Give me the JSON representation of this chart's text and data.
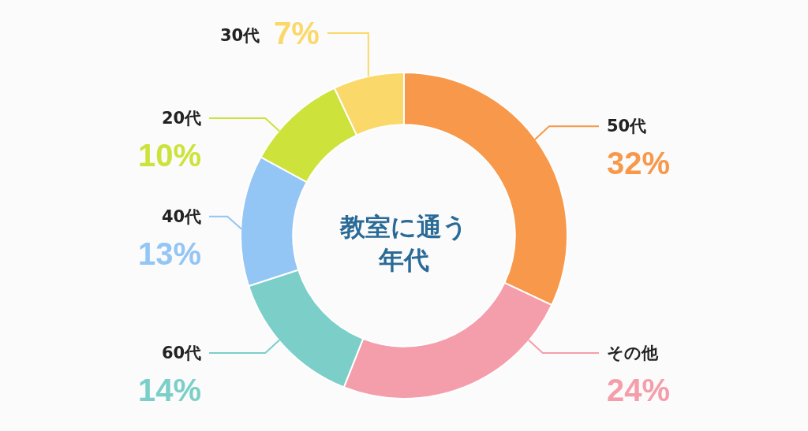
{
  "chart_data": {
    "type": "donut",
    "title": "教室に通う年代",
    "categories": [
      "50代",
      "その他",
      "60代",
      "40代",
      "20代",
      "30代"
    ],
    "values": [
      32,
      24,
      14,
      13,
      10,
      7
    ],
    "colors": [
      "#f7984a",
      "#f59eab",
      "#7ccfc8",
      "#93c5f5",
      "#cde23a",
      "#fbd86a"
    ],
    "value_labels": [
      "32%",
      "24%",
      "14%",
      "13%",
      "10%",
      "7%"
    ]
  }
}
